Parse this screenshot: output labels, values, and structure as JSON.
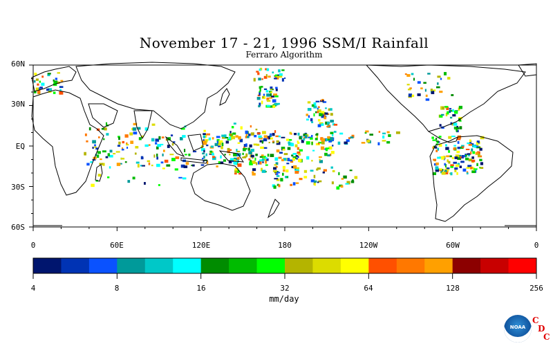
{
  "map": {
    "title": "November 17 - 21, 1996 SSM/I Rainfall",
    "subtitle": "Ferraro Algorithm",
    "lat_labels": [
      "60N",
      "30N",
      "EQ",
      "30S",
      "60S"
    ],
    "lat_values": [
      60,
      30,
      0,
      -30,
      -60
    ],
    "lon_labels": [
      "0",
      "60E",
      "120E",
      "180",
      "120W",
      "60W",
      "0"
    ],
    "lon_values": [
      0,
      60,
      120,
      180,
      240,
      300,
      360
    ],
    "extent": {
      "lon": [
        0,
        360
      ],
      "lat": [
        -60,
        60
      ]
    }
  },
  "colorbar": {
    "tick_labels": [
      "4",
      "8",
      "16",
      "32",
      "64",
      "128",
      "256"
    ],
    "units": "mm/day",
    "colors": [
      "#00156e",
      "#0033b4",
      "#0a52ff",
      "#009a9a",
      "#00c8c8",
      "#00ffff",
      "#008c00",
      "#00bb00",
      "#00ff00",
      "#b4b400",
      "#dcdc00",
      "#ffff00",
      "#ff5000",
      "#ff7800",
      "#ffa000",
      "#8c0000",
      "#c80000",
      "#ff0000"
    ]
  },
  "logo": {
    "text": "NOAA",
    "letters": [
      "C",
      "D",
      "C"
    ]
  }
}
